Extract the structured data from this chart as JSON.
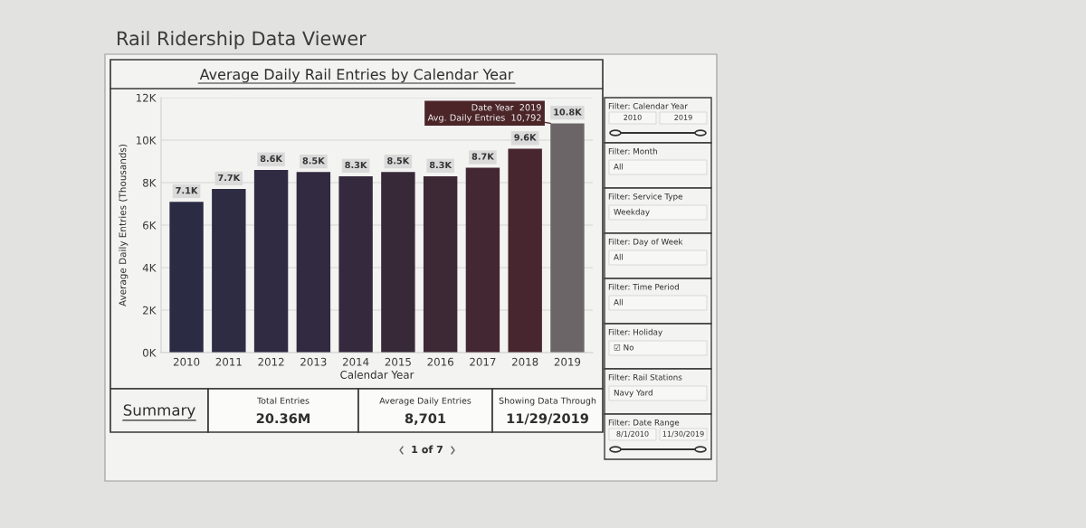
{
  "chart_data": [
    {
      "type": "other",
      "title": "Rail Ridership Data Viewer",
      "annotations": [
        "1 of 7"
      ]
    },
    {
      "type": "bar",
      "title": "Average Daily Rail Entries by Calendar Year",
      "xlabel": "Calendar Year",
      "ylabel": "Average Daily Entries (Thousands)",
      "categories": [
        "2010",
        "2011",
        "2012",
        "2013",
        "2014",
        "2015",
        "2016",
        "2017",
        "2018",
        "2019"
      ],
      "values": [
        7100,
        7700,
        8600,
        8500,
        8300,
        8500,
        8300,
        8700,
        9600,
        10792
      ],
      "colors": [
        "#2b2c44",
        "#2d2c43",
        "#302b42",
        "#322a40",
        "#35293d",
        "#382939",
        "#3d2835",
        "#432732",
        "#47262f",
        "#6b6567"
      ],
      "value_labels": [
        "7.1K",
        "7.7K",
        "8.6K",
        "8.5K",
        "8.3K",
        "8.5K",
        "8.3K",
        "8.7K",
        "9.6K",
        "10.8K"
      ],
      "ylim": [
        0,
        12000
      ],
      "yticks": [
        {
          "value": 0,
          "label": "0K"
        },
        {
          "value": 2000,
          "label": "2K"
        },
        {
          "value": 4000,
          "label": "4K"
        },
        {
          "value": 6000,
          "label": "6K"
        },
        {
          "value": 8000,
          "label": "8K"
        },
        {
          "value": 10000,
          "label": "10K"
        },
        {
          "value": 12000,
          "label": "12K"
        }
      ],
      "grid": "y",
      "annotations": [
        {
          "text": "Date Year  2019\nAvg. Daily Entries  10,792",
          "x": "2019",
          "y": 10792
        }
      ]
    },
    {
      "type": "other",
      "title": "Summary",
      "annotations": [
        "Total Entries\n20.36M",
        "Average Daily Entries\n8,701",
        "Showing Data Through\n11/29/2019"
      ]
    },
    {
      "type": "other",
      "annotations": [
        "Filter: Calendar Year\n2010\n2019",
        "Filter: Month\nAll",
        "Filter: Service Type\nWeekday",
        "Filter: Day of Week\nAll",
        "Filter: Time Period\nAll",
        "Filter: Holiday\n☑ No",
        "Filter: Rail Stations\nNavy Yard",
        "Filter: Date Range\n8/1/2010\n11/30/2019"
      ]
    }
  ]
}
